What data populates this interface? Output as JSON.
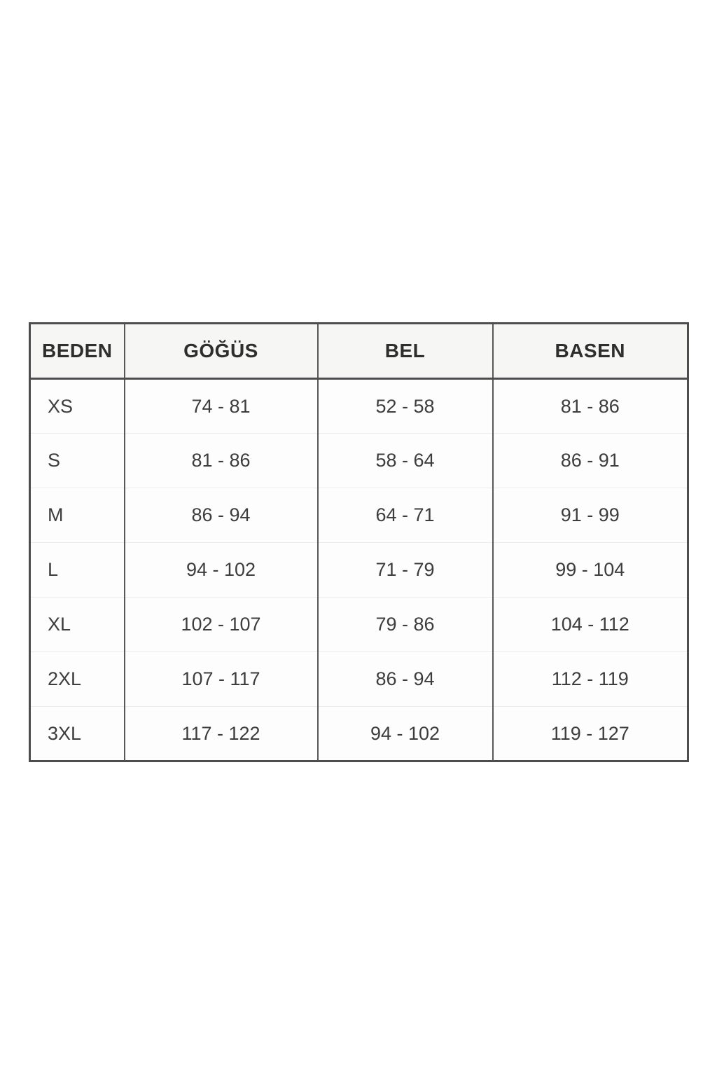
{
  "page": {
    "background": "#ffffff"
  },
  "table": {
    "columns": [
      {
        "key": "beden",
        "label": "BEDEN"
      },
      {
        "key": "gogus",
        "label": "GÖĞÜS"
      },
      {
        "key": "bel",
        "label": "BEL"
      },
      {
        "key": "basen",
        "label": "BASEN"
      }
    ],
    "rows": [
      {
        "beden": "XS",
        "gogus": "74 - 81",
        "bel": "52 - 58",
        "basen": "81 - 86"
      },
      {
        "beden": "S",
        "gogus": "81 - 86",
        "bel": "58 - 64",
        "basen": "86 - 91"
      },
      {
        "beden": "M",
        "gogus": "86 - 94",
        "bel": "64 - 71",
        "basen": "91 - 99"
      },
      {
        "beden": "L",
        "gogus": "94 - 102",
        "bel": "71 - 79",
        "basen": "99 - 104"
      },
      {
        "beden": "XL",
        "gogus": "102 - 107",
        "bel": "79 - 86",
        "basen": "104 - 112"
      },
      {
        "beden": "2XL",
        "gogus": "107 - 117",
        "bel": "86 - 94",
        "basen": "112 - 119"
      },
      {
        "beden": "3XL",
        "gogus": "117 - 122",
        "bel": "94 - 102",
        "basen": "119 - 127"
      }
    ],
    "colors": {
      "outer_border": "#4d4d4d",
      "column_border": "#585858",
      "row_separator": "#ebebeb",
      "header_background": "#f6f6f5",
      "body_background": "#fdfdfd",
      "header_text": "#2e2e2e",
      "body_text": "#3d3d3d"
    }
  },
  "chart_data": {
    "type": "table",
    "title": "",
    "columns": [
      "BEDEN",
      "GÖĞÜS",
      "BEL",
      "BASEN"
    ],
    "rows": [
      [
        "XS",
        "74 - 81",
        "52 - 58",
        "81 - 86"
      ],
      [
        "S",
        "81 - 86",
        "58 - 64",
        "86 - 91"
      ],
      [
        "M",
        "86 - 94",
        "64 - 71",
        "91 - 99"
      ],
      [
        "L",
        "94 - 102",
        "71 - 79",
        "99 - 104"
      ],
      [
        "XL",
        "102 - 107",
        "79 - 86",
        "104 - 112"
      ],
      [
        "2XL",
        "107 - 117",
        "86 - 94",
        "112 - 119"
      ],
      [
        "3XL",
        "117 - 122",
        "94 - 102",
        "119 - 127"
      ]
    ]
  }
}
